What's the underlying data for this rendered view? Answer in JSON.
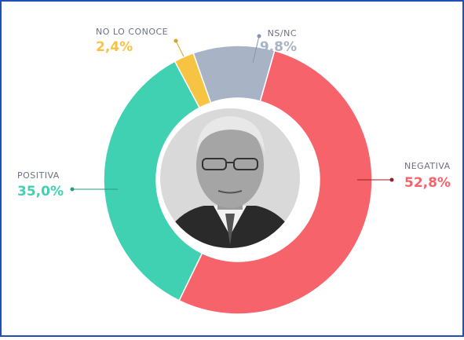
{
  "chart_data": {
    "type": "donut",
    "categories": [
      "NS/NC",
      "NEGATIVA",
      "POSITIVA",
      "NO LO CONOCE"
    ],
    "values": [
      9.8,
      52.8,
      35.0,
      2.4
    ],
    "value_labels": [
      "9,8%",
      "52,8%",
      "35,0%",
      "2,4%"
    ],
    "colors": [
      "#a9b3c6",
      "#f7636b",
      "#3fd1b1",
      "#f6c343"
    ]
  }
}
